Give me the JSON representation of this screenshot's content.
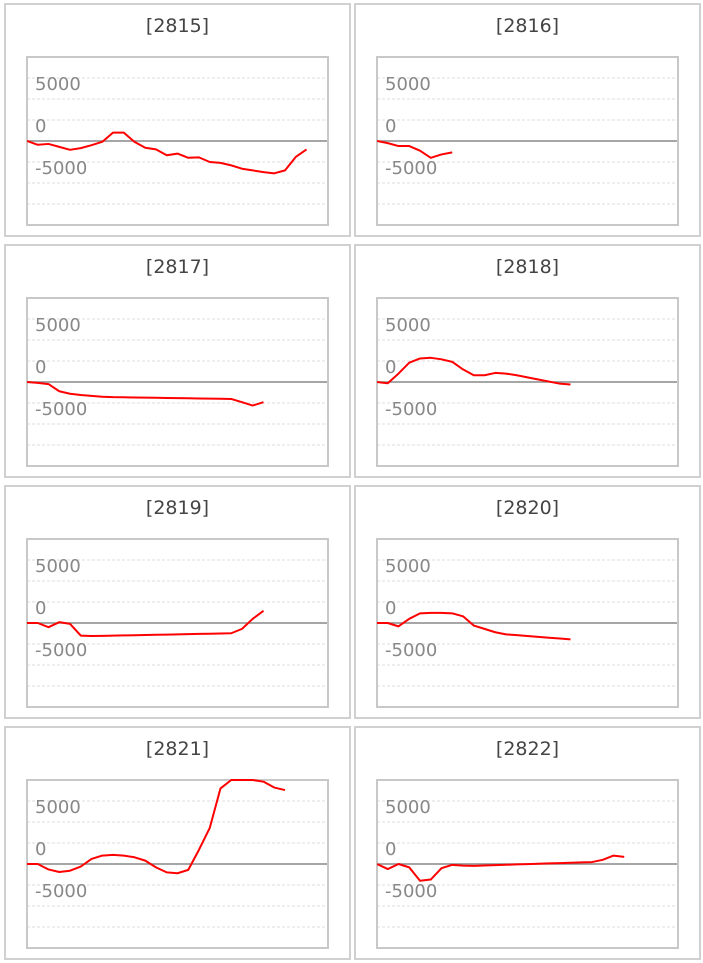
{
  "chart_data": [
    {
      "type": "line",
      "title": "[2815]",
      "color": "#ff0000",
      "ylim": [
        -10000,
        10000
      ],
      "yticks": [
        -5000,
        0,
        5000
      ],
      "minor_yticks": [
        -7500,
        -2500,
        2500,
        7500
      ],
      "grid": true,
      "values": [
        0,
        -450,
        -350,
        -700,
        -1050,
        -850,
        -500,
        -100,
        1000,
        1000,
        -100,
        -800,
        -1000,
        -1700,
        -1500,
        -2000,
        -1950,
        -2500,
        -2600,
        -2900,
        -3300,
        -3500,
        -3700,
        -3850,
        -3500,
        -1900,
        -1000
      ]
    },
    {
      "type": "line",
      "title": "[2816]",
      "color": "#ff0000",
      "ylim": [
        -10000,
        10000
      ],
      "yticks": [
        -5000,
        0,
        5000
      ],
      "minor_yticks": [
        -7500,
        -2500,
        2500,
        7500
      ],
      "grid": true,
      "values": [
        0,
        -250,
        -600,
        -600,
        -1150,
        -2000,
        -1600,
        -1350
      ]
    },
    {
      "type": "line",
      "title": "[2817]",
      "color": "#ff0000",
      "ylim": [
        -10000,
        10000
      ],
      "yticks": [
        -5000,
        0,
        5000
      ],
      "minor_yticks": [
        -7500,
        -2500,
        2500,
        7500
      ],
      "grid": true,
      "values": [
        0,
        -100,
        -250,
        -1100,
        -1400,
        -1550,
        -1650,
        -1750,
        -1800,
        -1820,
        -1840,
        -1860,
        -1880,
        -1900,
        -1920,
        -1940,
        -1960,
        -1980,
        -2000,
        -2020,
        -2400,
        -2800,
        -2400
      ]
    },
    {
      "type": "line",
      "title": "[2818]",
      "color": "#ff0000",
      "ylim": [
        -10000,
        10000
      ],
      "yticks": [
        -5000,
        0,
        5000
      ],
      "minor_yticks": [
        -7500,
        -2500,
        2500,
        7500
      ],
      "grid": true,
      "values": [
        0,
        -150,
        1000,
        2300,
        2800,
        2880,
        2700,
        2400,
        1500,
        800,
        800,
        1080,
        1000,
        800,
        550,
        300,
        50,
        -200,
        -300
      ]
    },
    {
      "type": "line",
      "title": "[2819]",
      "color": "#ff0000",
      "ylim": [
        -10000,
        10000
      ],
      "yticks": [
        -5000,
        0,
        5000
      ],
      "minor_yticks": [
        -7500,
        -2500,
        2500,
        7500
      ],
      "grid": true,
      "values": [
        0,
        0,
        -500,
        100,
        -100,
        -1500,
        -1550,
        -1530,
        -1500,
        -1480,
        -1460,
        -1430,
        -1400,
        -1380,
        -1350,
        -1330,
        -1300,
        -1280,
        -1250,
        -1220,
        -700,
        500,
        1450
      ]
    },
    {
      "type": "line",
      "title": "[2820]",
      "color": "#ff0000",
      "ylim": [
        -10000,
        10000
      ],
      "yticks": [
        -5000,
        0,
        5000
      ],
      "minor_yticks": [
        -7500,
        -2500,
        2500,
        7500
      ],
      "grid": true,
      "values": [
        0,
        0,
        -400,
        500,
        1150,
        1200,
        1200,
        1150,
        800,
        -300,
        -700,
        -1100,
        -1350,
        -1450,
        -1550,
        -1650,
        -1750,
        -1850,
        -1950
      ]
    },
    {
      "type": "line",
      "title": "[2821]",
      "color": "#ff0000",
      "ylim": [
        -10000,
        10000
      ],
      "yticks": [
        -5000,
        0,
        5000
      ],
      "minor_yticks": [
        -7500,
        -2500,
        2500,
        7500
      ],
      "grid": true,
      "values": [
        0,
        0,
        -650,
        -950,
        -800,
        -300,
        600,
        1000,
        1080,
        1000,
        800,
        400,
        -400,
        -1000,
        -1100,
        -700,
        1700,
        4300,
        9000,
        10000,
        10000,
        10000,
        9800,
        9100,
        8800
      ]
    },
    {
      "type": "line",
      "title": "[2822]",
      "color": "#ff0000",
      "ylim": [
        -10000,
        10000
      ],
      "yticks": [
        -5000,
        0,
        5000
      ],
      "minor_yticks": [
        -7500,
        -2500,
        2500,
        7500
      ],
      "grid": true,
      "values": [
        0,
        -600,
        0,
        -400,
        -2000,
        -1850,
        -500,
        -100,
        -200,
        -220,
        -180,
        -130,
        -90,
        -50,
        -10,
        30,
        70,
        110,
        150,
        190,
        230,
        500,
        1000,
        850
      ]
    }
  ]
}
